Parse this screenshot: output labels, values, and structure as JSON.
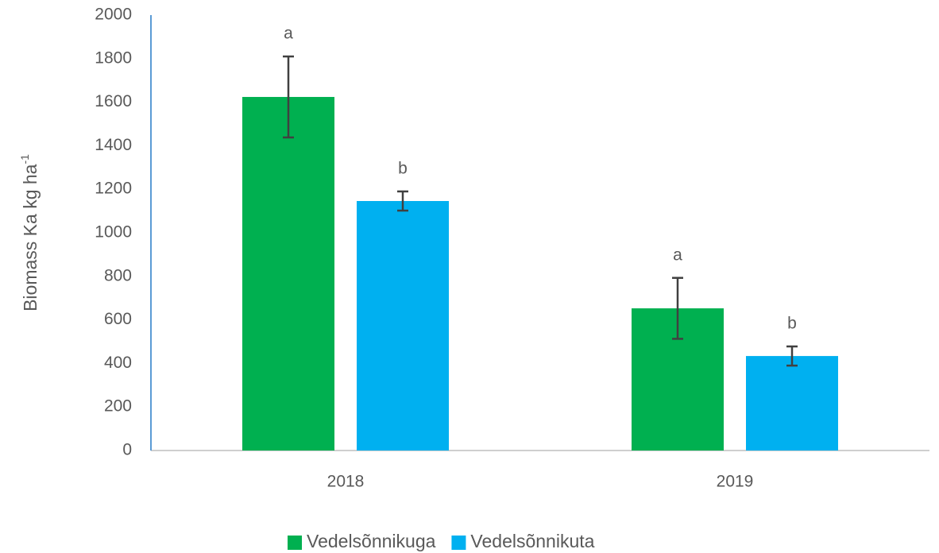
{
  "chart_data": {
    "type": "bar",
    "ylabel": {
      "text": "Biomass Ka kg ha",
      "superscript": "-1"
    },
    "categories": [
      "2018",
      "2019"
    ],
    "series": [
      {
        "name": "Vedelsõnnikuga",
        "color": "#00b050",
        "values": [
          1624,
          653
        ],
        "errors": [
          186,
          140
        ],
        "labels": [
          "a",
          "a"
        ]
      },
      {
        "name": "Vedelsõnnikuta",
        "color": "#00b0f0",
        "values": [
          1146,
          434
        ],
        "errors": [
          44,
          44
        ],
        "labels": [
          "b",
          "b"
        ]
      }
    ],
    "ylim": [
      0,
      2000
    ],
    "yticks": [
      0,
      200,
      400,
      600,
      800,
      1000,
      1200,
      1400,
      1600,
      1800,
      2000
    ],
    "grid": false,
    "legend": "bottom"
  }
}
